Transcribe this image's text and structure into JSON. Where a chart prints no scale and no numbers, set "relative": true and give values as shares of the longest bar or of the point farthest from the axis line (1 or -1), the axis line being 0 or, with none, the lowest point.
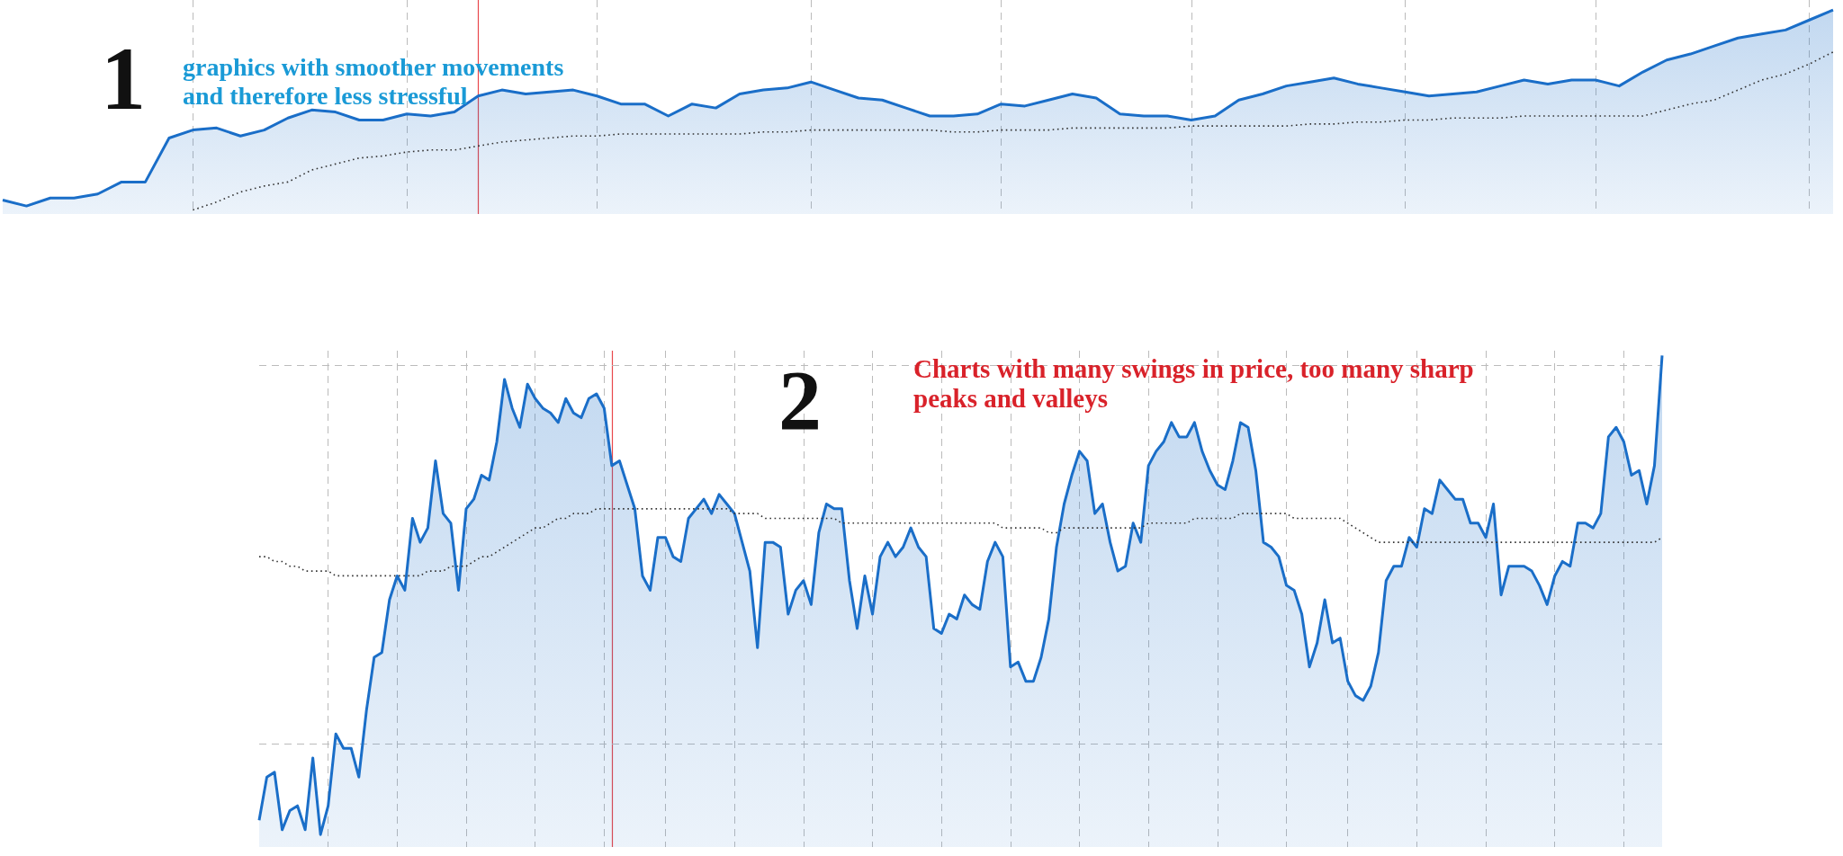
{
  "chart_data": [
    {
      "type": "area",
      "relative": true,
      "grid": "x",
      "marker": "none",
      "categories": [
        null,
        null,
        null,
        null,
        null,
        null,
        null,
        null,
        null,
        null,
        null,
        null,
        null,
        null,
        null,
        null,
        null,
        null,
        null,
        null,
        null,
        null,
        null,
        null,
        null,
        null,
        null,
        null,
        null,
        null,
        null,
        null,
        null,
        null,
        null,
        null,
        null,
        null,
        null,
        null,
        null,
        null,
        null,
        null,
        null,
        null,
        null,
        null,
        null,
        null,
        null,
        null,
        null,
        null,
        null,
        null,
        null,
        null,
        null,
        null,
        null,
        null,
        null,
        null,
        null,
        null,
        null,
        null,
        null,
        null,
        null,
        null,
        null,
        null,
        null,
        null,
        null,
        null
      ],
      "series": [
        {
          "color": "#1a6ec8",
          "values": [
            0.05,
            0.02,
            0.06,
            0.06,
            0.08,
            0.14,
            0.14,
            0.36,
            0.4,
            0.41,
            0.37,
            0.4,
            0.46,
            0.5,
            0.49,
            0.45,
            0.45,
            0.48,
            0.47,
            0.49,
            0.57,
            0.6,
            0.58,
            0.59,
            0.6,
            0.57,
            0.53,
            0.53,
            0.47,
            0.53,
            0.51,
            0.58,
            0.6,
            0.61,
            0.64,
            0.6,
            0.56,
            0.55,
            0.51,
            0.47,
            0.47,
            0.48,
            0.53,
            0.52,
            0.55,
            0.58,
            0.56,
            0.48,
            0.47,
            0.47,
            0.45,
            0.47,
            0.55,
            0.58,
            0.62,
            0.64,
            0.66,
            0.63,
            0.61,
            0.59,
            0.57,
            0.58,
            0.59,
            0.62,
            0.65,
            0.63,
            0.65,
            0.65,
            0.62,
            0.69,
            0.75,
            0.78,
            0.82,
            0.86,
            0.88,
            0.9,
            0.95,
            1
          ]
        },
        {
          "type": "line",
          "color": "#333333",
          "line_style": "dotted",
          "values": [
            null,
            null,
            null,
            null,
            null,
            null,
            null,
            null,
            0,
            0.04,
            0.09,
            0.12,
            0.14,
            0.2,
            0.23,
            0.26,
            0.27,
            0.29,
            0.3,
            0.3,
            0.32,
            0.34,
            0.35,
            0.36,
            0.37,
            0.37,
            0.38,
            0.38,
            0.38,
            0.38,
            0.38,
            0.38,
            0.39,
            0.39,
            0.4,
            0.4,
            0.4,
            0.4,
            0.4,
            0.4,
            0.39,
            0.39,
            0.4,
            0.4,
            0.4,
            0.41,
            0.41,
            0.41,
            0.41,
            0.41,
            0.42,
            0.42,
            0.42,
            0.42,
            0.42,
            0.43,
            0.43,
            0.44,
            0.44,
            0.45,
            0.45,
            0.46,
            0.46,
            0.46,
            0.47,
            0.47,
            0.47,
            0.47,
            0.47,
            0.47,
            0.5,
            0.53,
            0.55,
            0.6,
            0.65,
            0.68,
            0.73,
            0.79
          ]
        }
      ],
      "annotations": [
        "1",
        "graphics with smoother movements and therefore less stressful"
      ]
    },
    {
      "type": "area",
      "relative": true,
      "grid": true,
      "marker": "none",
      "categories": [
        null,
        null,
        null,
        null,
        null,
        null,
        null,
        null,
        null,
        null,
        null,
        null,
        null,
        null,
        null,
        null,
        null,
        null,
        null,
        null,
        null,
        null,
        null,
        null,
        null,
        null,
        null,
        null,
        null,
        null,
        null,
        null,
        null,
        null,
        null,
        null,
        null,
        null,
        null,
        null,
        null,
        null,
        null,
        null,
        null,
        null,
        null,
        null,
        null,
        null,
        null,
        null,
        null,
        null,
        null,
        null,
        null,
        null,
        null,
        null,
        null,
        null,
        null,
        null,
        null,
        null,
        null,
        null,
        null,
        null,
        null,
        null,
        null,
        null,
        null,
        null,
        null,
        null,
        null,
        null,
        null,
        null,
        null,
        null,
        null,
        null,
        null,
        null,
        null,
        null,
        null,
        null,
        null,
        null,
        null,
        null,
        null,
        null,
        null,
        null,
        null,
        null,
        null,
        null,
        null,
        null,
        null,
        null,
        null,
        null,
        null,
        null,
        null,
        null,
        null,
        null,
        null,
        null,
        null,
        null,
        null,
        null,
        null,
        null,
        null,
        null,
        null,
        null,
        null,
        null,
        null,
        null,
        null,
        null,
        null,
        null,
        null,
        null,
        null,
        null,
        null,
        null,
        null,
        null,
        null,
        null,
        null,
        null,
        null,
        null,
        null,
        null,
        null,
        null,
        null,
        null,
        null,
        null,
        null,
        null,
        null,
        null,
        null,
        null,
        null,
        null,
        null,
        null,
        null,
        null,
        null,
        null,
        null,
        null,
        null,
        null,
        null,
        null,
        null,
        null,
        null,
        null,
        null,
        null
      ],
      "series": [
        {
          "color": "#1a6ec8",
          "values": [
            0.03,
            0.12,
            0.13,
            0.01,
            0.05,
            0.06,
            0.01,
            0.16,
            0,
            0.06,
            0.21,
            0.18,
            0.18,
            0.12,
            0.26,
            0.37,
            0.38,
            0.49,
            0.54,
            0.51,
            0.66,
            0.61,
            0.64,
            0.78,
            0.67,
            0.65,
            0.51,
            0.68,
            0.7,
            0.75,
            0.74,
            0.82,
            0.95,
            0.89,
            0.85,
            0.94,
            0.91,
            0.89,
            0.88,
            0.86,
            0.91,
            0.88,
            0.87,
            0.91,
            0.92,
            0.89,
            0.77,
            0.78,
            0.73,
            0.68,
            0.54,
            0.51,
            0.62,
            0.62,
            0.58,
            0.57,
            0.66,
            0.68,
            0.7,
            0.67,
            0.71,
            0.69,
            0.67,
            0.61,
            0.55,
            0.39,
            0.61,
            0.61,
            0.6,
            0.46,
            0.51,
            0.53,
            0.48,
            0.63,
            0.69,
            0.68,
            0.68,
            0.53,
            0.43,
            0.54,
            0.46,
            0.58,
            0.61,
            0.58,
            0.6,
            0.64,
            0.6,
            0.58,
            0.43,
            0.42,
            0.46,
            0.45,
            0.5,
            0.48,
            0.47,
            0.57,
            0.61,
            0.58,
            0.35,
            0.36,
            0.32,
            0.32,
            0.37,
            0.45,
            0.6,
            0.69,
            0.75,
            0.8,
            0.78,
            0.67,
            0.69,
            0.61,
            0.55,
            0.56,
            0.65,
            0.61,
            0.77,
            0.8,
            0.82,
            0.86,
            0.83,
            0.83,
            0.86,
            0.8,
            0.76,
            0.73,
            0.72,
            0.78,
            0.86,
            0.85,
            0.76,
            0.61,
            0.6,
            0.58,
            0.52,
            0.51,
            0.46,
            0.35,
            0.4,
            0.49,
            0.4,
            0.41,
            0.32,
            0.29,
            0.28,
            0.31,
            0.38,
            0.53,
            0.56,
            0.56,
            0.62,
            0.6,
            0.68,
            0.67,
            0.74,
            0.72,
            0.7,
            0.7,
            0.65,
            0.65,
            0.62,
            0.69,
            0.5,
            0.56,
            0.56,
            0.56,
            0.55,
            0.52,
            0.48,
            0.54,
            0.57,
            0.56,
            0.65,
            0.65,
            0.64,
            0.67,
            0.83,
            0.85,
            0.82,
            0.75,
            0.76,
            0.69,
            0.77,
            1.0
          ]
        },
        {
          "type": "line",
          "color": "#333333",
          "line_style": "dotted",
          "values": [
            0.58,
            0.58,
            0.57,
            0.57,
            0.56,
            0.56,
            0.55,
            0.55,
            0.55,
            0.55,
            0.54,
            0.54,
            0.54,
            0.54,
            0.54,
            0.54,
            0.54,
            0.54,
            0.54,
            0.54,
            0.54,
            0.54,
            0.55,
            0.55,
            0.55,
            0.56,
            0.56,
            0.56,
            0.57,
            0.58,
            0.58,
            0.59,
            0.6,
            0.61,
            0.62,
            0.63,
            0.64,
            0.64,
            0.65,
            0.66,
            0.66,
            0.67,
            0.67,
            0.67,
            0.68,
            0.68,
            0.68,
            0.68,
            0.68,
            0.68,
            0.68,
            0.68,
            0.68,
            0.68,
            0.68,
            0.68,
            0.68,
            0.68,
            0.68,
            0.68,
            0.68,
            0.68,
            0.67,
            0.67,
            0.67,
            0.67,
            0.66,
            0.66,
            0.66,
            0.66,
            0.66,
            0.66,
            0.66,
            0.66,
            0.66,
            0.66,
            0.65,
            0.65,
            0.65,
            0.65,
            0.65,
            0.65,
            0.65,
            0.65,
            0.65,
            0.65,
            0.65,
            0.65,
            0.65,
            0.65,
            0.65,
            0.65,
            0.65,
            0.65,
            0.65,
            0.65,
            0.65,
            0.64,
            0.64,
            0.64,
            0.64,
            0.64,
            0.64,
            0.63,
            0.63,
            0.64,
            0.64,
            0.64,
            0.64,
            0.64,
            0.64,
            0.64,
            0.64,
            0.64,
            0.64,
            0.64,
            0.65,
            0.65,
            0.65,
            0.65,
            0.65,
            0.65,
            0.66,
            0.66,
            0.66,
            0.66,
            0.66,
            0.66,
            0.67,
            0.67,
            0.67,
            0.67,
            0.67,
            0.67,
            0.67,
            0.66,
            0.66,
            0.66,
            0.66,
            0.66,
            0.66,
            0.66,
            0.65,
            0.64,
            0.63,
            0.62,
            0.61,
            0.61,
            0.61,
            0.61,
            0.61,
            0.61,
            0.61,
            0.61,
            0.61,
            0.61,
            0.61,
            0.61,
            0.61,
            0.61,
            0.61,
            0.61,
            0.61,
            0.61,
            0.61,
            0.61,
            0.61,
            0.61,
            0.61,
            0.61,
            0.61,
            0.61,
            0.61,
            0.61,
            0.61,
            0.61,
            0.61,
            0.61,
            0.61,
            0.61,
            0.61,
            0.61,
            0.61,
            0.62
          ]
        }
      ],
      "annotations": [
        "2",
        "Charts with many swings in price, too many sharp peaks and valleys"
      ]
    }
  ]
}
